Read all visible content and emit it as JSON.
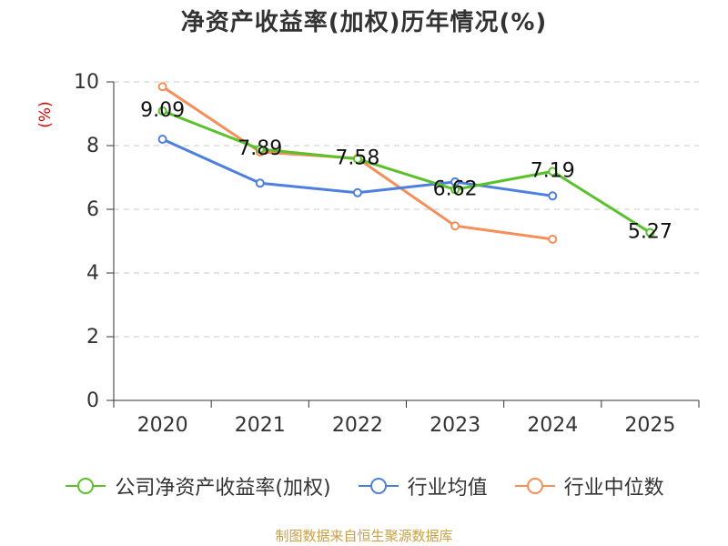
{
  "chart_data": {
    "type": "line",
    "title": "净资产收益率(加权)历年情况(%)",
    "xlabel": "",
    "ylabel": "(%)",
    "categories": [
      "2020",
      "2021",
      "2022",
      "2023",
      "2024",
      "2025"
    ],
    "ylim": [
      0,
      10
    ],
    "yticks": [
      0,
      2,
      4,
      6,
      8,
      10
    ],
    "grid": true,
    "legend_position": "bottom",
    "series": [
      {
        "name": "公司净资产收益率(加权)",
        "color": "#5ac12c",
        "values": [
          9.09,
          7.89,
          7.58,
          6.62,
          7.19,
          5.27
        ],
        "labels": [
          "9.09",
          "7.89",
          "7.58",
          "6.62",
          "7.19",
          "5.27"
        ]
      },
      {
        "name": "行业均值",
        "color": "#4f7fde",
        "values": [
          8.2,
          6.82,
          6.52,
          6.86,
          6.42,
          null
        ]
      },
      {
        "name": "行业中位数",
        "color": "#f58e58",
        "values": [
          9.85,
          7.8,
          7.6,
          5.48,
          5.06,
          null
        ]
      }
    ]
  },
  "source_text": "制图数据来自恒生聚源数据库"
}
